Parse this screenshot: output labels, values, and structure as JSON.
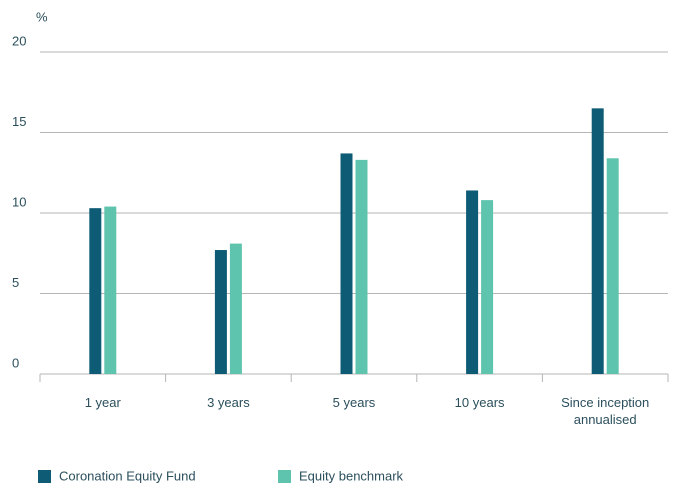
{
  "chart_data": {
    "type": "bar",
    "y_label": "%",
    "categories": [
      "1 year",
      "3 years",
      "5 years",
      "10 years",
      "Since inception annualised"
    ],
    "series": [
      {
        "name": "Coronation Equity Fund",
        "color": "#0d5b74",
        "values": [
          10.3,
          7.7,
          13.7,
          11.4,
          16.5
        ]
      },
      {
        "name": "Equity benchmark",
        "color": "#5fc4ad",
        "values": [
          10.4,
          8.1,
          13.3,
          10.8,
          13.4
        ]
      }
    ],
    "ylim": [
      0,
      20
    ],
    "yticks": [
      0,
      5,
      10,
      15,
      20
    ],
    "grid": true
  }
}
